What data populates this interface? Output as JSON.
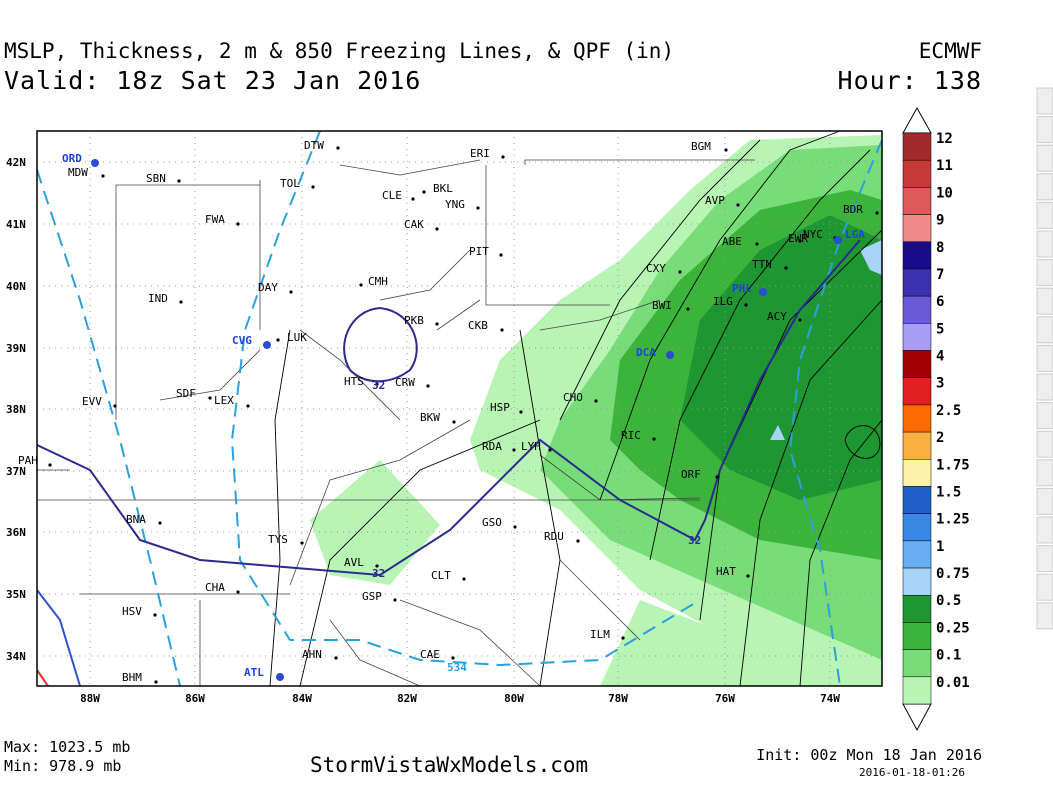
{
  "header": {
    "title": "MSLP, Thickness, 2 m & 850 Freezing Lines, & QPF (in)",
    "model": "ECMWF",
    "valid": "Valid: 18z Sat 23 Jan 2016",
    "hour": "Hour: 138"
  },
  "map": {
    "lat_labels": [
      "42N",
      "41N",
      "40N",
      "39N",
      "38N",
      "37N",
      "36N",
      "35N",
      "34N"
    ],
    "lon_labels": [
      "88W",
      "86W",
      "84W",
      "82W",
      "80W",
      "78W",
      "76W",
      "74W"
    ],
    "cities": [
      "ORD",
      "MDW",
      "SBN",
      "DTW",
      "TOL",
      "CLE",
      "BKL",
      "ERI",
      "BGM",
      "YNG",
      "CAK",
      "FWA",
      "AVP",
      "BDR",
      "NYC",
      "EWR",
      "LGA",
      "ABE",
      "PIT",
      "TTN",
      "CXY",
      "CMH",
      "DAY",
      "IND",
      "PHL",
      "ILG",
      "ACY",
      "PKB",
      "CKB",
      "BWI",
      "CVG",
      "LUK",
      "DCA",
      "HTS",
      "CRW",
      "SDF",
      "LEX",
      "EVV",
      "CHO",
      "HSP",
      "BKW",
      "RIC",
      "RDA",
      "LYH",
      "PAH",
      "ORF",
      "BNA",
      "GSO",
      "RDU",
      "TYS",
      "AVL",
      "HAT",
      "CLT",
      "CHA",
      "GSP",
      "HSV",
      "ILM",
      "AHN",
      "CAE",
      "ATL",
      "BHM"
    ],
    "contour_labels": [
      "32",
      "32",
      "32",
      "534"
    ]
  },
  "legend": {
    "labels": [
      "12",
      "11",
      "10",
      "9",
      "8",
      "7",
      "6",
      "5",
      "4",
      "3",
      "2.5",
      "2",
      "1.75",
      "1.5",
      "1.25",
      "1",
      "0.75",
      "0.5",
      "0.25",
      "0.1",
      "0.01"
    ],
    "colors": [
      "#a32a2a",
      "#c83a3a",
      "#dc5a5a",
      "#f08a8a",
      "#1a0a8c",
      "#3a30b0",
      "#6a5ad8",
      "#a89cf4",
      "#a00000",
      "#e02020",
      "#ff6a00",
      "#f8b040",
      "#fff2a8",
      "#1e60c8",
      "#3a88e6",
      "#68aef2",
      "#a8d4fa",
      "#1e9632",
      "#3cb43c",
      "#78dc78",
      "#b8f4b4"
    ]
  },
  "footer": {
    "max": "Max: 1023.5 mb",
    "min": "Min: 978.9 mb",
    "site": "StormVistaWxModels.com",
    "init": "Init: 00z Mon 18 Jan 2016",
    "stamp": "2016-01-18-01:26"
  }
}
